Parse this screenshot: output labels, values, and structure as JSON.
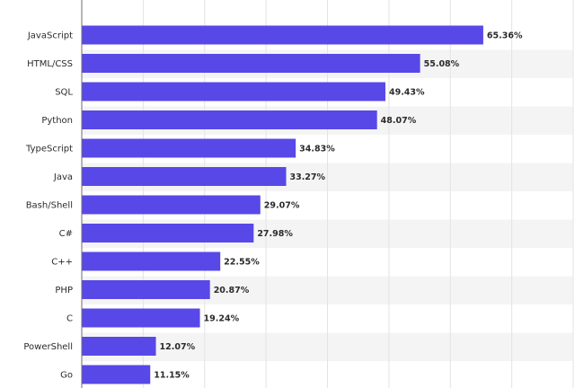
{
  "chart_data": {
    "type": "bar",
    "orientation": "horizontal",
    "categories": [
      "JavaScript",
      "HTML/CSS",
      "SQL",
      "Python",
      "TypeScript",
      "Java",
      "Bash/Shell",
      "C#",
      "C++",
      "PHP",
      "C",
      "PowerShell",
      "Go"
    ],
    "values": [
      65.36,
      55.08,
      49.43,
      48.07,
      34.83,
      33.27,
      29.07,
      27.98,
      22.55,
      20.87,
      19.24,
      12.07,
      11.15
    ],
    "value_labels": [
      "65.36%",
      "55.08%",
      "49.43%",
      "48.07%",
      "34.83%",
      "33.27%",
      "29.07%",
      "27.98%",
      "22.55%",
      "20.87%",
      "19.24%",
      "12.07%",
      "11.15%"
    ],
    "value_unit": "%",
    "title": "",
    "xlabel": "",
    "ylabel": "",
    "xlim": [
      0,
      80
    ],
    "grid": "vertical",
    "legend": "none",
    "colors": {
      "bar": "#5848e8",
      "grid": "#e3e3e3",
      "axis": "#6e6e6e",
      "alt_row": "#f4f4f4",
      "text": "#2b2b2b"
    }
  }
}
